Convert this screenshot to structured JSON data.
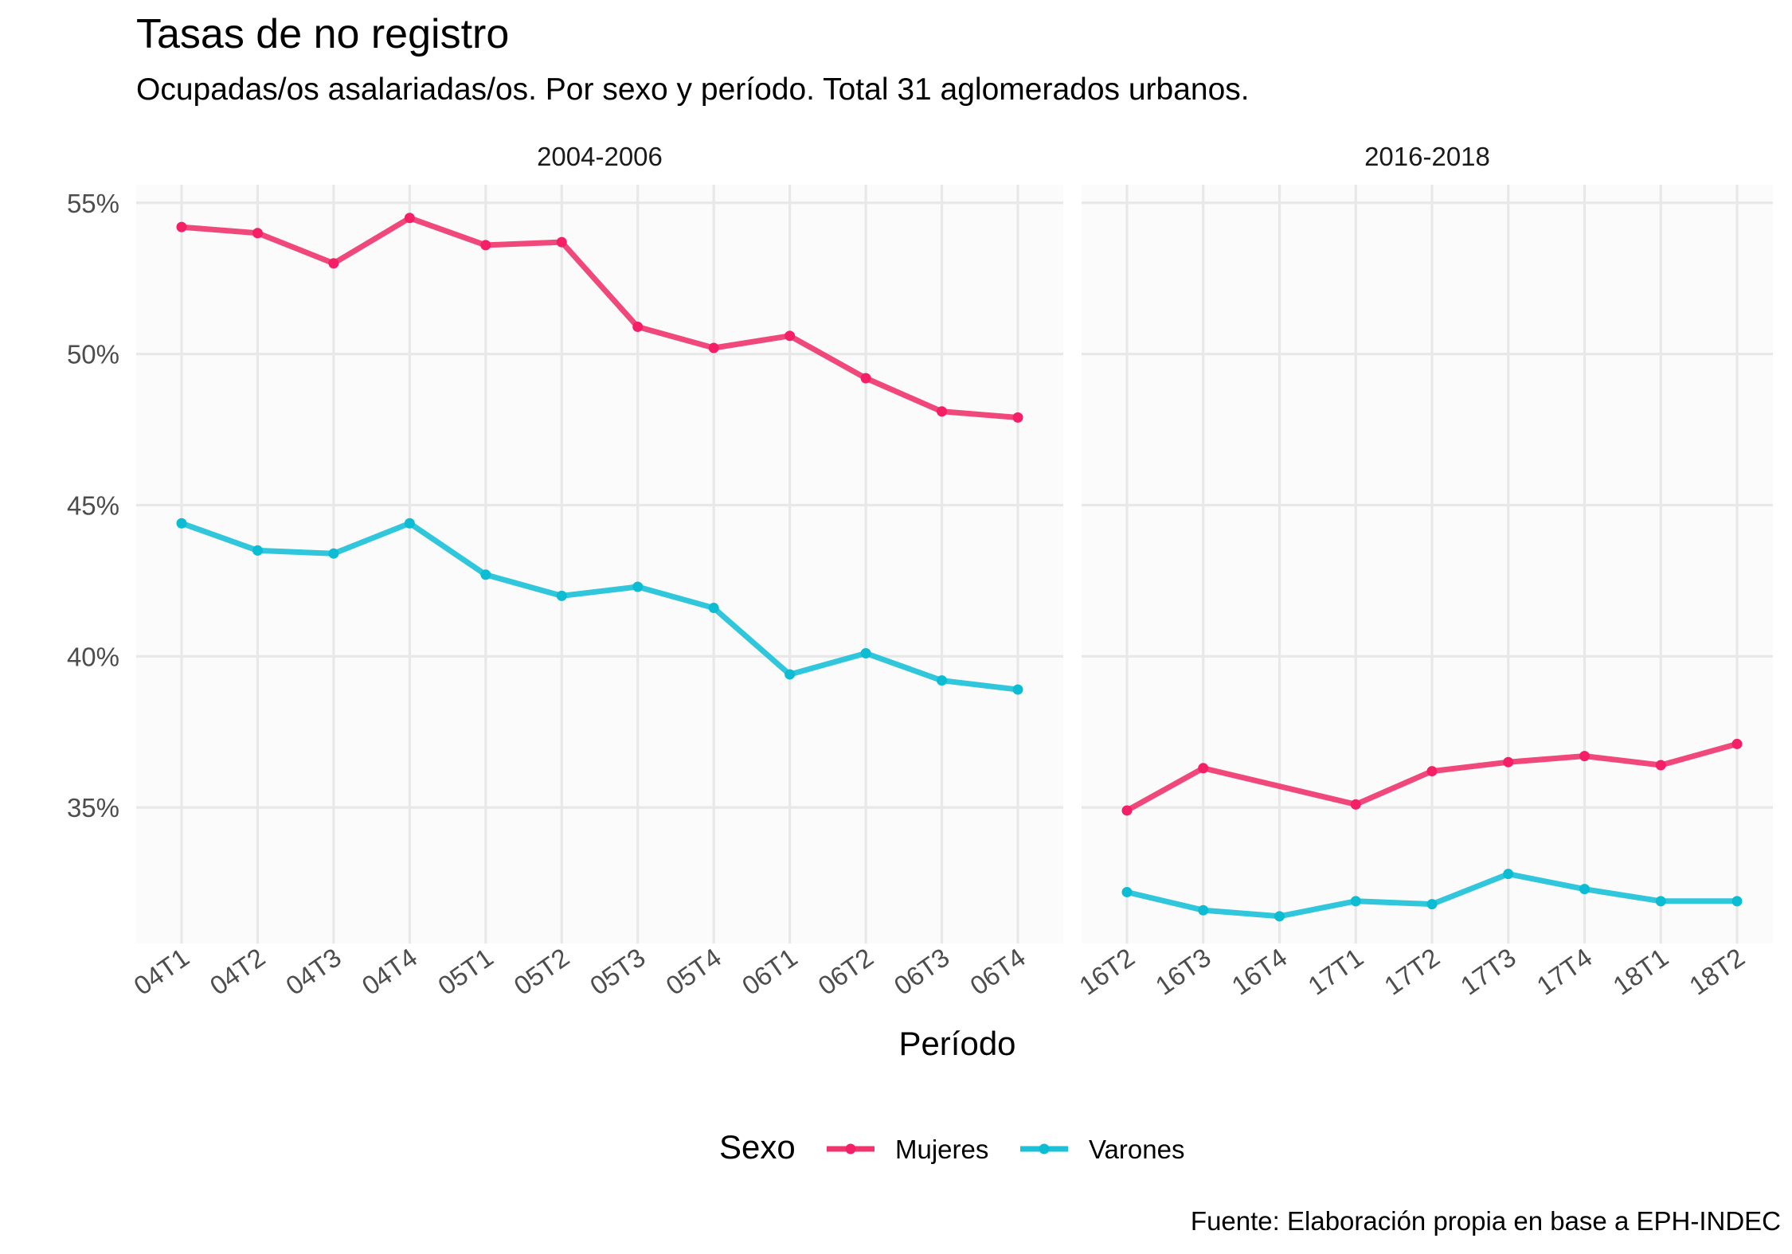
{
  "chart_data": {
    "type": "line",
    "title": "Tasas de no registro",
    "subtitle": "Ocupadas/os asalariadas/os. Por sexo y período. Total 31 aglomerados urbanos.",
    "xlabel": "Período",
    "ylabel": "",
    "caption": "Fuente: Elaboración propia en base a EPH-INDEC",
    "ylim": [
      30.5,
      55.6
    ],
    "yticks": [
      35,
      40,
      45,
      50,
      55
    ],
    "ytick_labels": [
      "35%",
      "40%",
      "45%",
      "50%",
      "55%"
    ],
    "grid": true,
    "legend": {
      "title": "Sexo",
      "position": "bottom",
      "entries": [
        "Mujeres",
        "Varones"
      ]
    },
    "colors": {
      "Mujeres": "#f0346e",
      "Varones": "#1ac1d8"
    },
    "point_colors": {
      "Mujeres": "#f41f66",
      "Varones": "#0bbcd3"
    },
    "panels": [
      {
        "label": "2004-2006",
        "categories": [
          "04T1",
          "04T2",
          "04T3",
          "04T4",
          "05T1",
          "05T2",
          "05T3",
          "05T4",
          "06T1",
          "06T2",
          "06T3",
          "06T4"
        ],
        "series": [
          {
            "name": "Mujeres",
            "values": [
              54.2,
              54.0,
              53.0,
              54.5,
              53.6,
              53.7,
              50.9,
              50.2,
              50.6,
              49.2,
              48.1,
              47.9
            ]
          },
          {
            "name": "Varones",
            "values": [
              44.4,
              43.5,
              43.4,
              44.4,
              42.7,
              42.0,
              42.3,
              41.6,
              39.4,
              40.1,
              39.2,
              38.9
            ]
          }
        ]
      },
      {
        "label": "2016-2018",
        "categories": [
          "16T2",
          "16T3",
          "16T4",
          "17T1",
          "17T2",
          "17T3",
          "17T4",
          "18T1",
          "18T2"
        ],
        "series": [
          {
            "name": "Mujeres",
            "values": [
              34.9,
              36.3,
              null,
              35.1,
              36.2,
              36.5,
              36.7,
              36.4,
              37.1
            ]
          },
          {
            "name": "Varones",
            "values": [
              32.2,
              31.6,
              31.4,
              31.9,
              31.8,
              32.8,
              32.3,
              31.9,
              31.9
            ]
          }
        ]
      }
    ]
  }
}
